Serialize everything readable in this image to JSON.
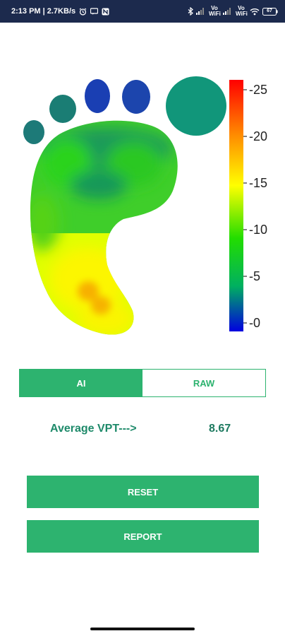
{
  "status_bar": {
    "time_speed": "2:13 PM | 2.7KB/s",
    "battery": "67",
    "network_labels": [
      "Vo WiFi",
      "Vo WiFi"
    ]
  },
  "heatmap": {
    "scale_ticks": [
      "-25",
      "-20",
      "-15",
      "-10",
      "-5",
      "-0"
    ],
    "scale_colors": [
      "#ff0000",
      "#ff8c00",
      "#ffff00",
      "#22dd00",
      "#00b060",
      "#0000e0"
    ]
  },
  "mode_toggle": {
    "options": [
      {
        "label": "AI",
        "selected": true
      },
      {
        "label": "RAW",
        "selected": false
      }
    ]
  },
  "vpt": {
    "label": "Average VPT--->",
    "value": "8.67"
  },
  "buttons": {
    "reset": "RESET",
    "report": "REPORT"
  },
  "colors": {
    "accent": "#2db36f",
    "status_bar": "#1c2a4d",
    "text_teal": "#1e8a6a"
  }
}
